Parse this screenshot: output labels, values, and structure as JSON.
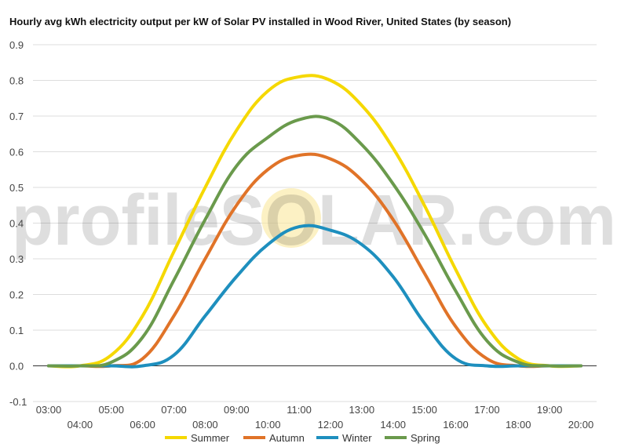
{
  "chart_data": {
    "type": "line",
    "title": "Hourly avg kWh electricity output per kW of Solar PV installed in Wood River, United States (by season)",
    "xlabel": "",
    "ylabel": "",
    "x": [
      "03:00",
      "04:00",
      "05:00",
      "06:00",
      "07:00",
      "08:00",
      "09:00",
      "10:00",
      "11:00",
      "12:00",
      "13:00",
      "14:00",
      "15:00",
      "16:00",
      "17:00",
      "18:00",
      "19:00",
      "20:00"
    ],
    "ylim": [
      -0.1,
      0.9
    ],
    "yticks": [
      "-0.1",
      "0.0",
      "0.1",
      "0.2",
      "0.3",
      "0.4",
      "0.5",
      "0.6",
      "0.7",
      "0.8",
      "0.9"
    ],
    "grid": true,
    "legend": "bottom",
    "series": [
      {
        "name": "Summer",
        "color": "#f5d800",
        "values": [
          0.0,
          0.0,
          0.03,
          0.14,
          0.32,
          0.5,
          0.66,
          0.77,
          0.81,
          0.8,
          0.73,
          0.61,
          0.45,
          0.27,
          0.11,
          0.02,
          0.0,
          0.0
        ]
      },
      {
        "name": "Autumn",
        "color": "#e07328",
        "values": [
          0.0,
          0.0,
          0.0,
          0.02,
          0.14,
          0.3,
          0.45,
          0.55,
          0.59,
          0.58,
          0.52,
          0.41,
          0.26,
          0.11,
          0.02,
          0.0,
          0.0,
          0.0
        ]
      },
      {
        "name": "Winter",
        "color": "#1e8fbe",
        "values": [
          0.0,
          0.0,
          0.0,
          0.0,
          0.03,
          0.14,
          0.25,
          0.34,
          0.39,
          0.38,
          0.34,
          0.25,
          0.12,
          0.02,
          0.0,
          0.0,
          0.0,
          0.0
        ]
      },
      {
        "name": "Spring",
        "color": "#6a9a4c",
        "values": [
          0.0,
          0.0,
          0.01,
          0.08,
          0.24,
          0.41,
          0.56,
          0.64,
          0.69,
          0.69,
          0.62,
          0.51,
          0.37,
          0.21,
          0.07,
          0.01,
          0.0,
          0.0
        ]
      }
    ]
  },
  "watermark": "profileSOLAR.com"
}
